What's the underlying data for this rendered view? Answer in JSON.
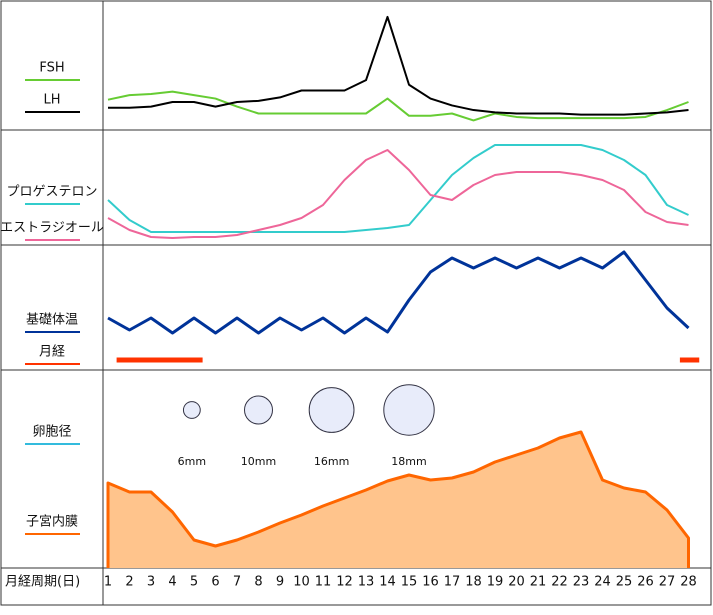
{
  "days": [
    1,
    2,
    3,
    4,
    5,
    6,
    7,
    8,
    9,
    10,
    11,
    12,
    13,
    14,
    15,
    16,
    17,
    18,
    19,
    20,
    21,
    22,
    23,
    24,
    25,
    26,
    27,
    28
  ],
  "x_title": "月経周期(日)",
  "chart_data": [
    {
      "type": "line",
      "ylim": [
        0,
        100
      ],
      "series": [
        {
          "name": "FSH",
          "color": "#66cc33",
          "values": [
            22,
            26,
            27,
            29,
            26,
            23,
            16,
            10,
            10,
            10,
            10,
            10,
            10,
            23,
            8,
            8,
            10,
            4,
            10,
            7,
            6,
            6,
            6,
            6,
            6,
            7,
            13,
            20
          ]
        },
        {
          "name": "LH",
          "color": "#000000",
          "values": [
            15,
            15,
            16,
            20,
            20,
            16,
            20,
            21,
            24,
            30,
            30,
            30,
            39,
            94,
            35,
            23,
            17,
            13,
            11,
            10,
            10,
            10,
            9,
            9,
            9,
            10,
            11,
            13
          ]
        }
      ]
    },
    {
      "type": "line",
      "ylim": [
        0,
        100
      ],
      "series": [
        {
          "name": "プロゲステロン",
          "color": "#33cccc",
          "values": [
            40,
            20,
            8,
            8,
            8,
            8,
            8,
            8,
            8,
            8,
            8,
            8,
            10,
            12,
            15,
            40,
            65,
            82,
            95,
            95,
            95,
            95,
            95,
            90,
            80,
            65,
            35,
            25
          ]
        },
        {
          "name": "エストラジオール",
          "color": "#ee6699",
          "values": [
            22,
            10,
            3,
            2,
            3,
            3,
            5,
            10,
            15,
            22,
            35,
            60,
            80,
            90,
            70,
            45,
            40,
            55,
            65,
            68,
            68,
            68,
            65,
            60,
            50,
            28,
            18,
            15
          ]
        }
      ]
    },
    {
      "type": "line",
      "ylim": [
        0,
        100
      ],
      "series": [
        {
          "name": "基礎体温",
          "color": "#003399",
          "values": [
            32,
            20,
            32,
            17,
            32,
            17,
            32,
            17,
            32,
            20,
            32,
            17,
            32,
            18,
            50,
            78,
            92,
            82,
            92,
            82,
            92,
            82,
            92,
            82,
            98,
            70,
            42,
            22
          ]
        },
        {
          "name": "月経",
          "color": "#ff3300",
          "ranges": [
            [
              1.4,
              5.4
            ],
            [
              27.6,
              28.5
            ]
          ]
        }
      ]
    },
    {
      "type": "area",
      "ylim": [
        0,
        100
      ],
      "series": [
        {
          "name": "子宮内膜",
          "color": "#ff6600",
          "fill": "#ffc48c",
          "values": [
            42.5,
            38,
            38,
            28,
            14,
            11,
            14,
            18,
            22.5,
            26.5,
            31,
            35,
            39,
            43.5,
            46.5,
            44,
            45,
            48,
            53,
            56.5,
            60,
            65,
            68,
            44,
            40,
            38,
            29,
            15
          ]
        }
      ],
      "follicles": {
        "name": "卵胞径",
        "color": "#33bbdd",
        "x": [
          4.9,
          8,
          11.4,
          15
        ],
        "values": [
          6,
          10,
          16,
          18
        ],
        "value_labels": [
          "6mm",
          "10mm",
          "16mm",
          "18mm"
        ]
      }
    }
  ]
}
